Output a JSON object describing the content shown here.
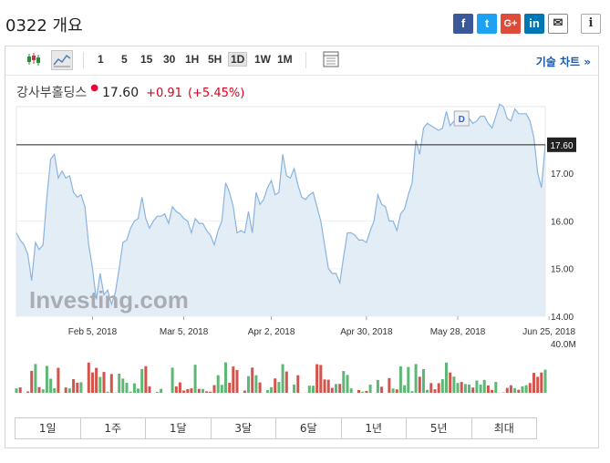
{
  "header": {
    "title": "0322 개요"
  },
  "share": {
    "facebook": "f",
    "twitter": "t",
    "googleplus": "G+",
    "linkedin": "in",
    "mail": "✉",
    "info": "i"
  },
  "toolbar": {
    "intervals": [
      "1",
      "5",
      "15",
      "30",
      "1H",
      "5H",
      "1D",
      "1W",
      "1M"
    ],
    "selected_interval": "1D",
    "tech_chart_label": "기술 차트 »"
  },
  "quote": {
    "name": "강사부홀딩스",
    "price": "17.60",
    "change": "+0.91",
    "change_pct": "(+5.45%)",
    "current_price_label": "17.60",
    "marker_label": "D"
  },
  "watermark": "Investing.com",
  "chart_data": {
    "type": "area",
    "y_ticks": [
      "17.00",
      "16.00",
      "15.00",
      "14.00"
    ],
    "ylim": [
      14.0,
      18.4
    ],
    "x_ticks": [
      "Feb 5, 2018",
      "Mar 5, 2018",
      "Apr 2, 2018",
      "Apr 30, 2018",
      "May 28, 2018",
      "Jun 25, 2018"
    ],
    "volume_ticks": [
      "40.0M",
      "0"
    ],
    "series": [
      {
        "values": [
          15.75,
          15.6,
          15.5,
          15.3,
          14.75,
          15.55,
          15.4,
          15.5,
          16.5,
          17.3,
          17.4,
          16.9,
          17.05,
          16.9,
          16.95,
          16.6,
          16.5,
          16.55,
          16.3,
          15.5,
          15.0,
          14.35,
          14.9,
          14.45,
          14.55,
          14.25,
          14.5,
          15.0,
          15.55,
          15.6,
          15.85,
          16.0,
          16.05,
          16.5,
          16.05,
          15.85,
          16.0,
          16.1,
          16.1,
          16.15,
          15.95,
          16.3,
          16.2,
          16.15,
          16.05,
          16.0,
          15.75,
          16.05,
          15.95,
          15.95,
          15.8,
          15.7,
          15.5,
          15.8,
          16.0,
          16.8,
          16.6,
          16.3,
          15.75,
          15.8,
          15.75,
          16.2,
          15.75,
          16.6,
          16.35,
          16.45,
          16.7,
          16.85,
          16.55,
          16.6,
          17.4,
          16.95,
          16.9,
          17.1,
          16.75,
          16.5,
          16.45,
          16.55,
          16.6,
          16.3,
          16.0,
          15.5,
          15.0,
          14.9,
          14.9,
          14.7,
          15.25,
          15.75,
          15.75,
          15.7,
          15.6,
          15.6,
          15.55,
          15.8,
          16.0,
          16.55,
          16.35,
          16.3,
          16.0,
          16.0,
          15.8,
          16.15,
          16.25,
          16.55,
          16.8,
          17.7,
          17.4,
          17.95,
          18.05,
          18.0,
          17.95,
          17.9,
          17.95,
          18.3,
          18.0,
          18.1,
          18.15,
          18.1,
          18.15,
          18.15,
          18.05,
          18.1,
          18.2,
          18.2,
          18.05,
          17.95,
          18.2,
          18.45,
          18.4,
          18.15,
          18.1,
          18.35,
          18.25,
          18.25,
          18.25,
          18.1,
          17.75,
          17.0,
          16.7,
          17.6
        ]
      }
    ],
    "volume_colors": {
      "up": "#5fb775",
      "down": "#d2544c"
    }
  },
  "range_buttons": [
    "1일",
    "1주",
    "1달",
    "3달",
    "6달",
    "1년",
    "5년",
    "최대"
  ],
  "colors": {
    "line": "#8ab4e0",
    "fill": "#e3edf6",
    "price_up": "#e0001b",
    "link": "#1a5aa8"
  }
}
